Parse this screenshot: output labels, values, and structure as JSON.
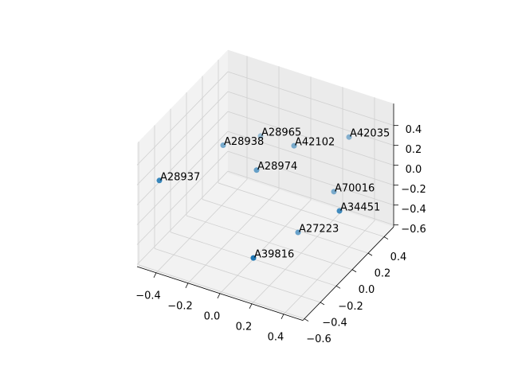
{
  "chart_data": {
    "type": "scatter3d",
    "labels": [
      "A28937",
      "A28938",
      "A28965",
      "A42102",
      "A42035",
      "A28974",
      "A70016",
      "A34451",
      "A27223",
      "A39816"
    ],
    "x": [
      -0.43,
      -0.28,
      -0.195,
      0.065,
      0.31,
      -0.07,
      0.265,
      0.45,
      0.14,
      0.11
    ],
    "y": [
      -0.52,
      -0.02,
      0.28,
      0.18,
      0.38,
      -0.02,
      0.28,
      -0.02,
      0.08,
      -0.42
    ],
    "z": [
      0.21,
      0.23,
      0.12,
      0.24,
      0.29,
      0.09,
      -0.2,
      -0.05,
      -0.51,
      -0.37
    ],
    "color": "#1f77b4",
    "xlim": [
      -0.52,
      0.52
    ],
    "ylim": [
      -0.62,
      0.52
    ],
    "zlim": [
      -0.62,
      0.62
    ],
    "xticks": [
      {
        "value": -0.4,
        "label": "−0.4"
      },
      {
        "value": -0.2,
        "label": "−0.2"
      },
      {
        "value": 0,
        "label": "0.0"
      },
      0.2,
      0.4
    ],
    "yticks": [
      {
        "value": -0.6,
        "label": "−0.6"
      },
      {
        "value": -0.4,
        "label": "−0.4"
      },
      {
        "value": -0.2,
        "label": "−0.2"
      },
      {
        "value": 0,
        "label": "0.0"
      },
      0.2,
      0.4
    ],
    "zticks": [
      {
        "value": -0.6,
        "label": "−0.6"
      },
      {
        "value": -0.4,
        "label": "−0.4"
      },
      {
        "value": -0.2,
        "label": "−0.2"
      },
      {
        "value": 0,
        "label": "0.0"
      },
      0.2,
      0.4
    ],
    "grid": true
  }
}
